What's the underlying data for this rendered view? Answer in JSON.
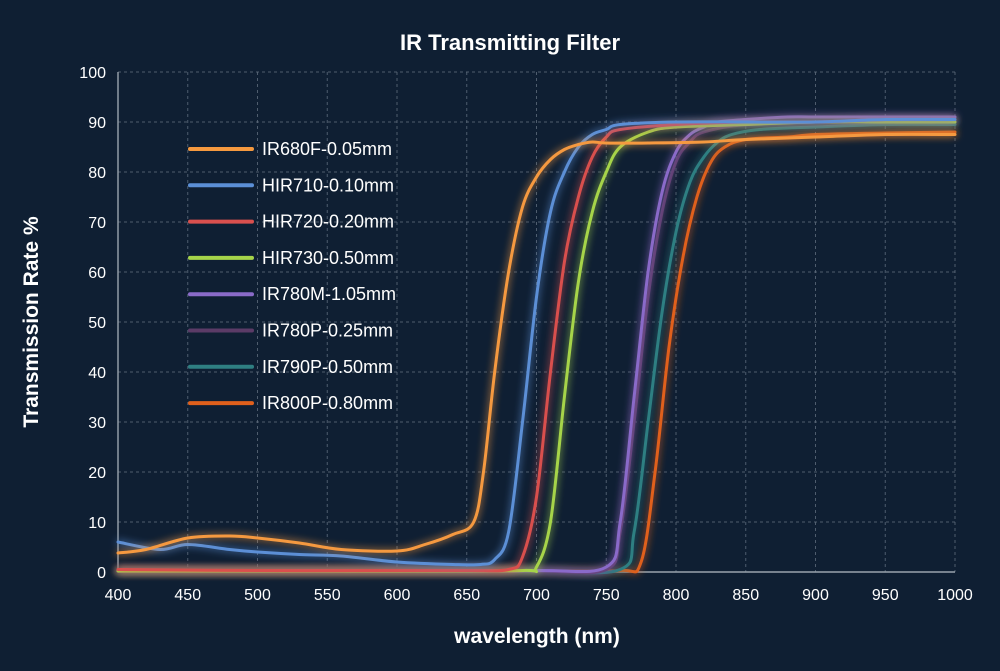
{
  "chart_data": {
    "type": "line",
    "title": "IR Transmitting Filter",
    "xlabel": "wavelength (nm)",
    "ylabel": "Transmission Rate %",
    "xlim": [
      400,
      1000
    ],
    "ylim": [
      0,
      100
    ],
    "xticks": [
      400,
      450,
      500,
      550,
      600,
      650,
      700,
      750,
      800,
      850,
      900,
      950,
      1000
    ],
    "yticks": [
      0,
      10,
      20,
      30,
      40,
      50,
      60,
      70,
      80,
      90,
      100
    ],
    "grid": true,
    "legend_position": "top-left",
    "series": [
      {
        "name": "IR680F-0.05mm",
        "color": "#f5993f",
        "x": [
          400,
          420,
          450,
          480,
          500,
          530,
          560,
          600,
          620,
          640,
          655,
          662,
          670,
          680,
          690,
          700,
          710,
          720,
          730,
          740,
          750,
          780,
          820,
          850,
          900,
          950,
          1000
        ],
        "y": [
          3.8,
          4.5,
          6.8,
          7.2,
          6.8,
          5.8,
          4.5,
          4.2,
          5.5,
          7.5,
          10,
          20,
          40,
          60,
          73,
          79,
          82.5,
          84.5,
          85.5,
          86,
          85.8,
          85.8,
          86,
          86.5,
          87,
          87.5,
          87.5
        ]
      },
      {
        "name": "HIR710-0.10mm",
        "color": "#5b8fd6",
        "x": [
          400,
          430,
          450,
          480,
          500,
          530,
          560,
          600,
          640,
          660,
          670,
          680,
          690,
          700,
          710,
          720,
          730,
          740,
          750,
          760,
          800,
          850,
          900,
          950,
          1000
        ],
        "y": [
          6,
          4.5,
          5.5,
          4.5,
          4,
          3.5,
          3.2,
          2,
          1.5,
          1.5,
          2.5,
          8,
          30,
          55,
          72,
          80,
          85,
          87.5,
          88.5,
          89.5,
          90,
          90,
          90,
          90.5,
          90.5
        ]
      },
      {
        "name": "HIR720-0.20mm",
        "color": "#d9504e",
        "x": [
          400,
          500,
          600,
          650,
          680,
          690,
          700,
          710,
          720,
          730,
          740,
          750,
          760,
          800,
          850,
          900,
          950,
          1000
        ],
        "y": [
          0.5,
          0.3,
          0.3,
          0.3,
          0.5,
          3,
          15,
          40,
          62,
          75,
          83,
          87,
          88.5,
          89.5,
          90,
          90,
          90.5,
          90.5
        ]
      },
      {
        "name": "HIR730-0.50mm",
        "color": "#a6d44a",
        "x": [
          400,
          500,
          600,
          690,
          700,
          710,
          720,
          730,
          740,
          750,
          760,
          780,
          800,
          850,
          900,
          950,
          1000
        ],
        "y": [
          0.2,
          0.2,
          0.2,
          0.3,
          1,
          10,
          35,
          58,
          72,
          80,
          85,
          88,
          89,
          89.5,
          90,
          90,
          90
        ]
      },
      {
        "name": "IR780M-1.05mm",
        "color": "#8a6bc9",
        "x": [
          400,
          500,
          600,
          700,
          750,
          760,
          770,
          780,
          790,
          800,
          810,
          820,
          830,
          850,
          880,
          900,
          950,
          1000
        ],
        "y": [
          0.3,
          0.3,
          0.3,
          0.3,
          1,
          10,
          35,
          60,
          76,
          84,
          87.5,
          89,
          90,
          90.5,
          91,
          91,
          91,
          91
        ]
      },
      {
        "name": "IR780P-0.25mm",
        "color": "#5b3b67",
        "x": [
          400,
          500,
          600,
          700,
          750,
          760,
          770,
          780,
          790,
          800,
          810,
          820,
          850,
          900,
          950,
          1000
        ],
        "y": [
          0.2,
          0.2,
          0.2,
          0.2,
          0.5,
          8,
          30,
          55,
          72,
          82,
          86,
          88,
          89.5,
          90,
          90,
          90
        ]
      },
      {
        "name": "IR790P-0.50mm",
        "color": "#2f7f82",
        "x": [
          400,
          500,
          600,
          700,
          760,
          770,
          780,
          790,
          800,
          810,
          820,
          830,
          840,
          860,
          900,
          950,
          1000
        ],
        "y": [
          0.2,
          0.2,
          0.2,
          0.2,
          0.5,
          8,
          30,
          52,
          68,
          78,
          83,
          86,
          87.5,
          88.5,
          89,
          89.5,
          89.5
        ]
      },
      {
        "name": "IR800P-0.80mm",
        "color": "#e0601c",
        "x": [
          400,
          500,
          600,
          700,
          760,
          775,
          785,
          795,
          805,
          815,
          825,
          835,
          850,
          880,
          900,
          950,
          1000
        ],
        "y": [
          0.2,
          0.2,
          0.2,
          0.2,
          0.3,
          2,
          20,
          45,
          63,
          75,
          82,
          85,
          86.5,
          87,
          87.5,
          87.8,
          88
        ]
      }
    ]
  }
}
